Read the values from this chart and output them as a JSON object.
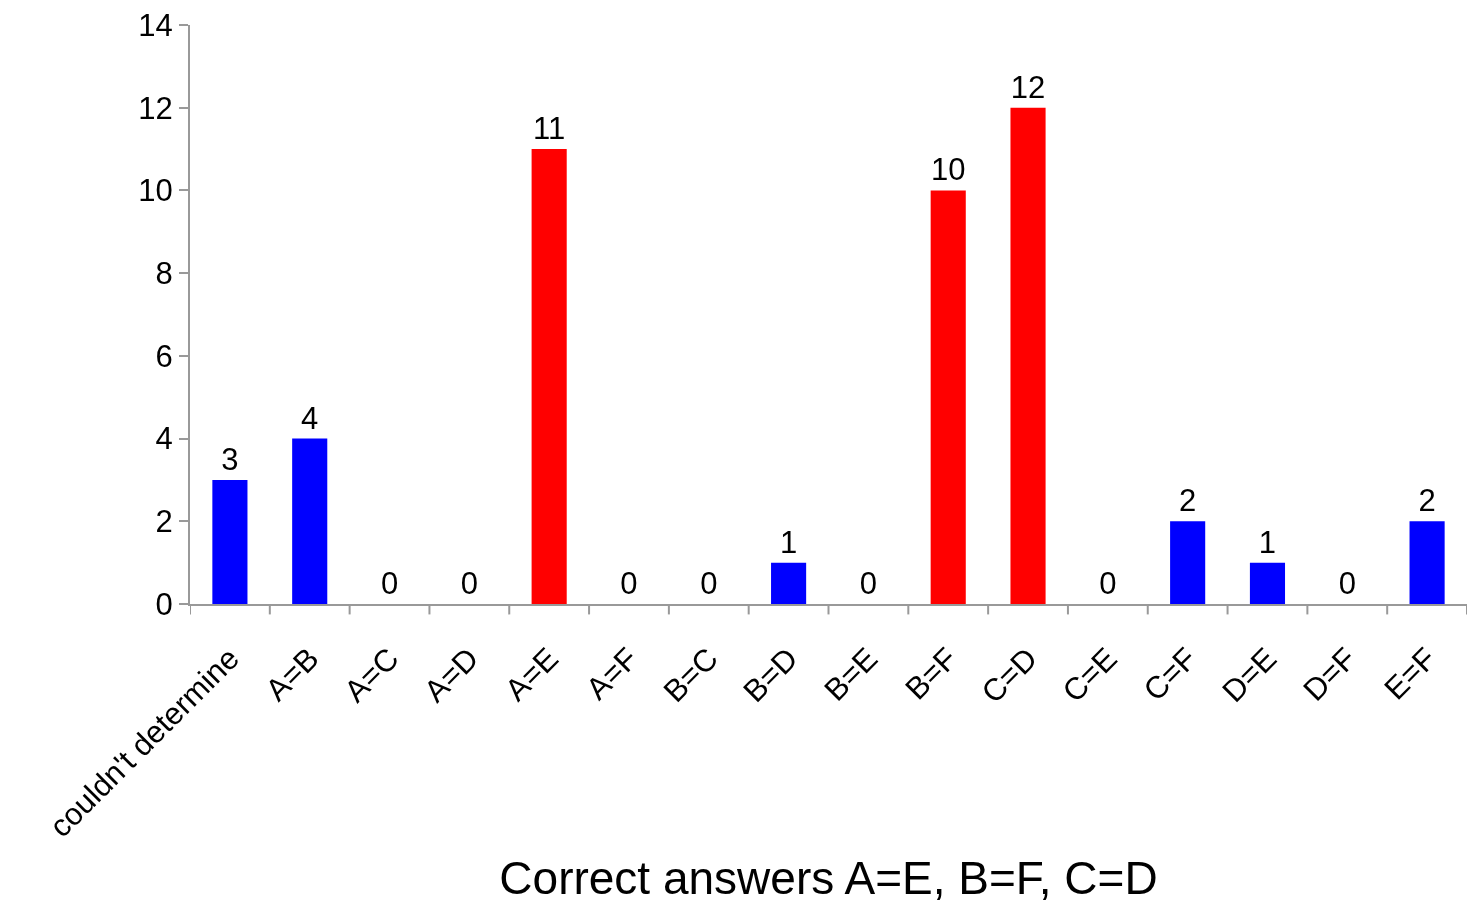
{
  "chart_data": {
    "type": "bar",
    "xlabel": "Correct answers A=E, B=F, C=D",
    "categories": [
      "couldn't determine",
      "A=B",
      "A=C",
      "A=D",
      "A=E",
      "A=F",
      "B=C",
      "B=D",
      "B=E",
      "B=F",
      "C=D",
      "C=E",
      "C=F",
      "D=E",
      "D=F",
      "E=F"
    ],
    "values": [
      3,
      4,
      0,
      0,
      11,
      0,
      0,
      1,
      0,
      10,
      12,
      0,
      2,
      1,
      0,
      2
    ],
    "colors": [
      "#0000ff",
      "#0000ff",
      "#0000ff",
      "#0000ff",
      "#ff0000",
      "#0000ff",
      "#0000ff",
      "#0000ff",
      "#0000ff",
      "#ff0000",
      "#ff0000",
      "#0000ff",
      "#0000ff",
      "#0000ff",
      "#0000ff",
      "#0000ff"
    ],
    "ylim": [
      0,
      14
    ],
    "yticks": [
      0,
      2,
      4,
      6,
      8,
      10,
      12,
      14
    ],
    "data_labels": true
  }
}
